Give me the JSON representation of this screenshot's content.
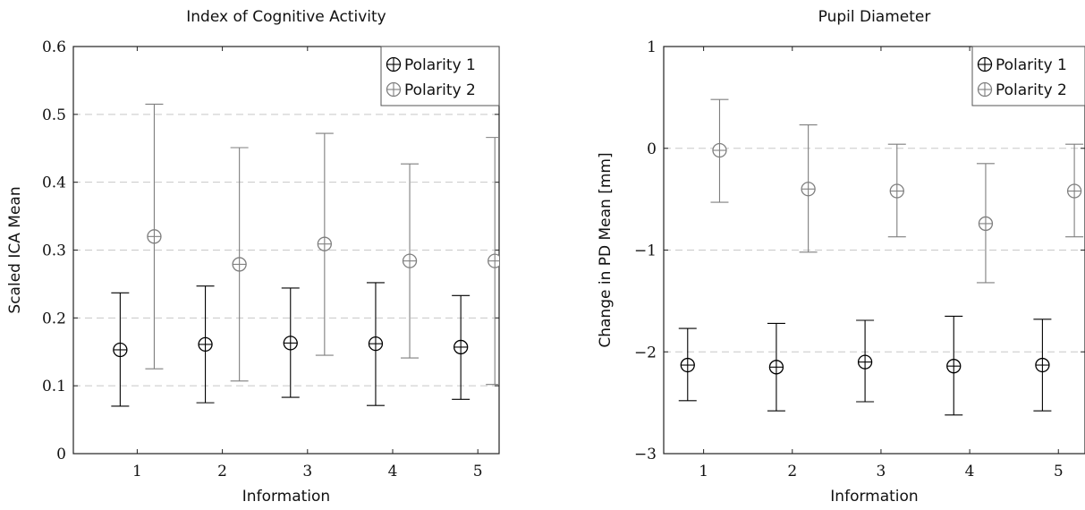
{
  "chart_data": [
    {
      "type": "scatter",
      "title": "Index of Cognitive Activity",
      "xlabel": "Information",
      "ylabel": "Scaled ICA Mean",
      "xlim": [
        0.25,
        5.25
      ],
      "ylim": [
        0,
        0.6
      ],
      "x_ticks": [
        1,
        2,
        3,
        4,
        5
      ],
      "y_ticks": [
        0,
        0.1,
        0.2,
        0.3,
        0.4,
        0.5,
        0.6
      ],
      "x_tick_labels": [
        "1",
        "2",
        "3",
        "4",
        "5"
      ],
      "y_tick_labels": [
        "0",
        "0.1",
        "0.2",
        "0.3",
        "0.4",
        "0.5",
        "0.6"
      ],
      "grid": "horizontal dashed",
      "legend_position": "top-right",
      "series": [
        {
          "name": "Polarity 1",
          "color": "#000000",
          "x": [
            0.8,
            1.8,
            2.8,
            3.8,
            4.8
          ],
          "y": [
            0.153,
            0.161,
            0.163,
            0.162,
            0.157
          ],
          "y_low": [
            0.07,
            0.075,
            0.083,
            0.071,
            0.08
          ],
          "y_high": [
            0.237,
            0.247,
            0.244,
            0.252,
            0.233
          ]
        },
        {
          "name": "Polarity 2",
          "color": "#7f7f7f",
          "x": [
            1.2,
            2.2,
            3.2,
            4.2,
            5.2
          ],
          "y": [
            0.32,
            0.279,
            0.309,
            0.284,
            0.284
          ],
          "y_low": [
            0.125,
            0.107,
            0.145,
            0.141,
            0.102
          ],
          "y_high": [
            0.515,
            0.451,
            0.472,
            0.427,
            0.466
          ]
        }
      ]
    },
    {
      "type": "scatter",
      "title": "Pupil Diameter",
      "xlabel": "Information",
      "ylabel": "Change in PD Mean [mm]",
      "xlim": [
        0.55,
        5.3
      ],
      "ylim": [
        -3,
        1
      ],
      "x_ticks": [
        1,
        2,
        3,
        4,
        5
      ],
      "y_ticks": [
        -3,
        -2,
        -1,
        0,
        1
      ],
      "x_tick_labels": [
        "1",
        "2",
        "3",
        "4",
        "5"
      ],
      "y_tick_labels": [
        "−3",
        "−2",
        "−1",
        "0",
        "1"
      ],
      "grid": "horizontal dashed",
      "legend_position": "top-right",
      "series": [
        {
          "name": "Polarity 1",
          "color": "#000000",
          "x": [
            0.82,
            1.82,
            2.82,
            3.82,
            4.82
          ],
          "y": [
            -2.13,
            -2.15,
            -2.1,
            -2.14,
            -2.13
          ],
          "y_low": [
            -2.48,
            -2.58,
            -2.49,
            -2.62,
            -2.58
          ],
          "y_high": [
            -1.77,
            -1.72,
            -1.69,
            -1.65,
            -1.68
          ]
        },
        {
          "name": "Polarity 2",
          "color": "#7f7f7f",
          "x": [
            1.18,
            2.18,
            3.18,
            4.18,
            5.18
          ],
          "y": [
            -0.02,
            -0.4,
            -0.42,
            -0.74,
            -0.42
          ],
          "y_low": [
            -0.53,
            -1.02,
            -0.87,
            -1.32,
            -0.87
          ],
          "y_high": [
            0.48,
            0.23,
            0.04,
            -0.15,
            0.04
          ]
        }
      ]
    }
  ]
}
